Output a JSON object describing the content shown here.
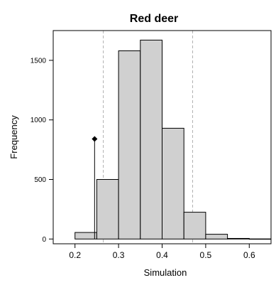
{
  "chart_data": {
    "type": "bar",
    "title": "Red deer",
    "xlabel": "Simulation",
    "ylabel": "Frequency",
    "xlim": [
      0.15,
      0.65
    ],
    "ylim": [
      -40,
      1750
    ],
    "x_ticks": [
      0.2,
      0.3,
      0.4,
      0.5,
      0.6
    ],
    "x_tick_labels": [
      "0.2",
      "0.3",
      "0.4",
      "0.5",
      "0.6"
    ],
    "y_ticks": [
      0,
      500,
      1000,
      1500
    ],
    "y_tick_labels": [
      "0",
      "500",
      "1000",
      "1500"
    ],
    "bins": [
      {
        "x0": 0.2,
        "x1": 0.25,
        "count": 55
      },
      {
        "x0": 0.25,
        "x1": 0.3,
        "count": 500
      },
      {
        "x0": 0.3,
        "x1": 0.35,
        "count": 1580
      },
      {
        "x0": 0.35,
        "x1": 0.4,
        "count": 1670
      },
      {
        "x0": 0.4,
        "x1": 0.45,
        "count": 930
      },
      {
        "x0": 0.45,
        "x1": 0.5,
        "count": 225
      },
      {
        "x0": 0.5,
        "x1": 0.55,
        "count": 40
      },
      {
        "x0": 0.55,
        "x1": 0.6,
        "count": 5
      },
      {
        "x0": 0.6,
        "x1": 0.65,
        "count": 1
      }
    ],
    "reference_lines": [
      0.265,
      0.47
    ],
    "observed": {
      "x": 0.245,
      "y": 840
    },
    "grid": false,
    "colors": {
      "bar_fill": "#d0d0d0",
      "bar_stroke": "#000000",
      "reference_line": "#b0b0b0"
    }
  }
}
